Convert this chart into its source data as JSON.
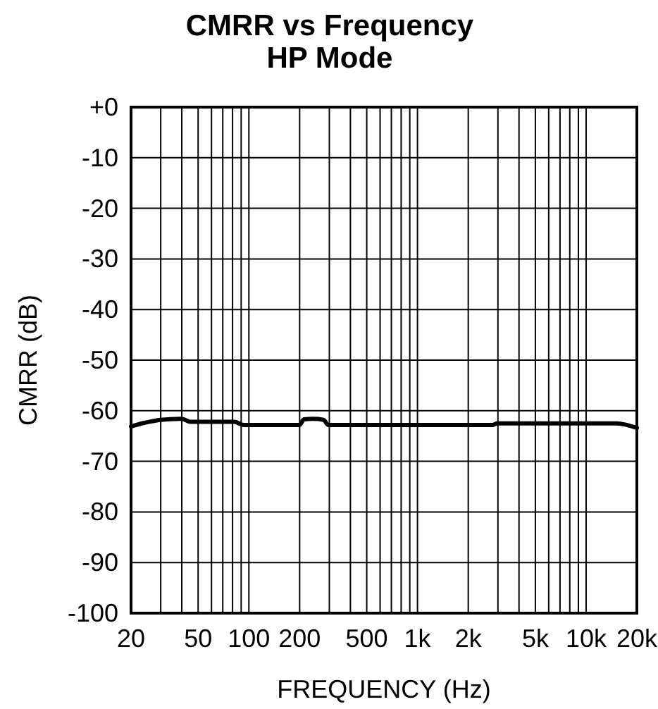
{
  "chart_data": {
    "type": "line",
    "title": "CMRR vs Frequency",
    "subtitle": "HP Mode",
    "xlabel": "FREQUENCY (Hz)",
    "ylabel": "CMRR (dB)",
    "log": "x",
    "grid": true,
    "xlim": [
      20,
      20000
    ],
    "ylim": [
      -100,
      0
    ],
    "xticks": [
      20,
      {
        "value": 30,
        "label": null
      },
      {
        "value": 40,
        "label": null
      },
      50,
      {
        "value": 60,
        "label": null
      },
      {
        "value": 70,
        "label": null
      },
      {
        "value": 80,
        "label": null
      },
      {
        "value": 90,
        "label": null
      },
      100,
      200,
      {
        "value": 300,
        "label": null
      },
      {
        "value": 400,
        "label": null
      },
      500,
      {
        "value": 600,
        "label": null
      },
      {
        "value": 700,
        "label": null
      },
      {
        "value": 800,
        "label": null
      },
      {
        "value": 900,
        "label": null
      },
      {
        "value": 1000,
        "label": "1k"
      },
      {
        "value": 2000,
        "label": "2k"
      },
      {
        "value": 3000,
        "label": null
      },
      {
        "value": 4000,
        "label": null
      },
      {
        "value": 5000,
        "label": "5k"
      },
      {
        "value": 6000,
        "label": null
      },
      {
        "value": 7000,
        "label": null
      },
      {
        "value": 8000,
        "label": null
      },
      {
        "value": 9000,
        "label": null
      },
      {
        "value": 10000,
        "label": "10k"
      },
      {
        "value": 20000,
        "label": "20k"
      }
    ],
    "yticks": [
      {
        "value": 0,
        "label": "+0"
      },
      -10,
      -20,
      -30,
      -40,
      -50,
      -60,
      -70,
      -80,
      -90,
      -100
    ],
    "series": [
      {
        "color": "#000000",
        "x": [
          20,
          24,
          30,
          40,
          45,
          82,
          93,
          200,
          212,
          240,
          277,
          296,
          2790,
          2970,
          15200,
          20000
        ],
        "values": [
          -63.1,
          -62.4,
          -61.8,
          -61.6,
          -62.2,
          -62.2,
          -62.8,
          -62.8,
          -61.7,
          -61.6,
          -61.8,
          -62.8,
          -62.8,
          -62.5,
          -62.5,
          -63.4
        ]
      }
    ]
  }
}
